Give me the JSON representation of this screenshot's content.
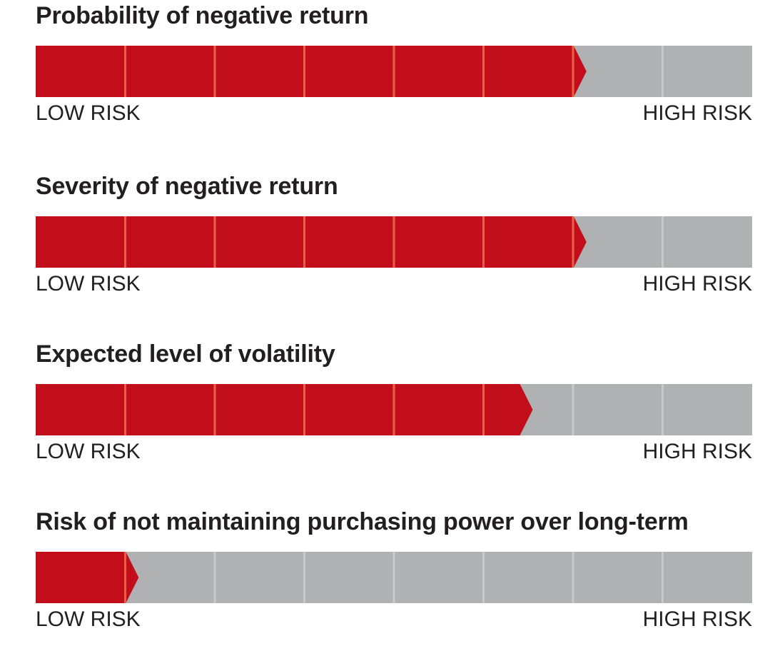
{
  "colors": {
    "filled": "#c20e1a",
    "empty": "#b0b1b3",
    "filled_divider": "#e8604a",
    "empty_divider": "#c8c9cb"
  },
  "chart_data": [
    {
      "type": "bar",
      "title": "Probability of negative return",
      "segments": 8,
      "level": 6.15,
      "low_label": "LOW RISK",
      "high_label": "HIGH RISK"
    },
    {
      "type": "bar",
      "title": "Severity of negative return",
      "segments": 8,
      "level": 6.15,
      "low_label": "LOW RISK",
      "high_label": "HIGH RISK"
    },
    {
      "type": "bar",
      "title": "Expected level of volatility",
      "segments": 8,
      "level": 5.55,
      "low_label": "LOW RISK",
      "high_label": "HIGH RISK"
    },
    {
      "type": "bar",
      "title": "Risk of not maintaining purchasing power over long-term",
      "segments": 8,
      "level": 1.15,
      "low_label": "LOW RISK",
      "high_label": "HIGH RISK"
    }
  ]
}
